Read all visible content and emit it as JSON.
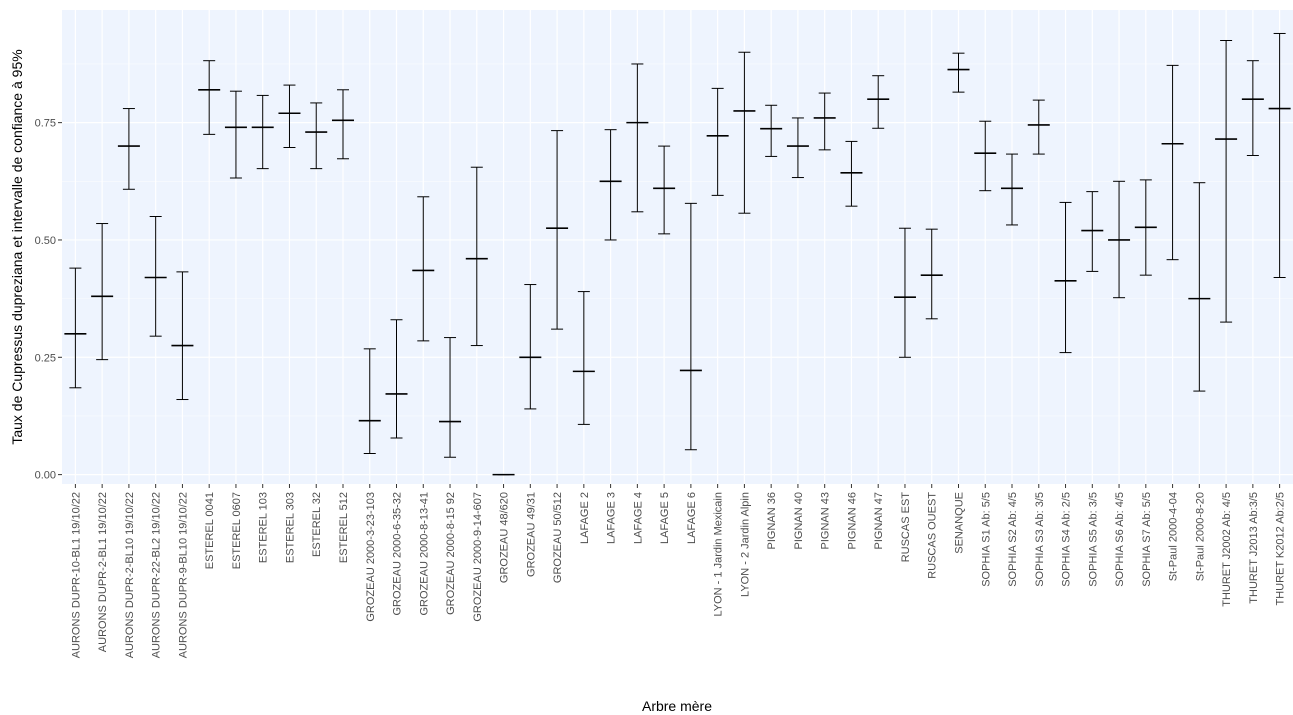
{
  "chart_data": {
    "type": "errorbar",
    "xlabel": "Arbre mère",
    "ylabel": "Taux de Cupressus dupreziana et intervalle de confiance à 95%",
    "ylim": [
      -0.02,
      0.99
    ],
    "yticks": [
      0.0,
      0.25,
      0.5,
      0.75
    ],
    "ytick_labels": [
      "0.00",
      "0.25",
      "0.50",
      "0.75"
    ],
    "grid": true,
    "colors": {
      "panel": "#eef4fe",
      "grid_major": "#ffffff",
      "mark": "#000000"
    },
    "categories": [
      "AURONS DUPR-10-BL1 19/10/22",
      "AURONS DUPR-2-BL1 19/10/22",
      "AURONS DUPR-2-BL10 19/10/22",
      "AURONS DUPR-22-BL2 19/10/22",
      "AURONS DUPR-9-BL10 19/10/22",
      "ESTEREL 0041",
      "ESTEREL 0607",
      "ESTEREL 103",
      "ESTEREL 303",
      "ESTEREL 32",
      "ESTEREL 512",
      "GROZEAU 2000-3-23-103",
      "GROZEAU 2000-6-35-32",
      "GROZEAU 2000-8-13-41",
      "GROZEAU 2000-8-15 92",
      "GROZEAU 2000-9-14-607",
      "GROZEAU 48/620",
      "GROZEAU 49/31",
      "GROZEAU 50/512",
      "LAFAGE 2",
      "LAFAGE 3",
      "LAFAGE 4",
      "LAFAGE 5",
      "LAFAGE 6",
      "LYON - 1 Jardin Mexicain",
      "LYON - 2 Jardin Alpin",
      "PIGNAN 36",
      "PIGNAN 40",
      "PIGNAN 43",
      "PIGNAN 46",
      "PIGNAN 47",
      "RUSCAS EST",
      "RUSCAS OUEST",
      "SENANQUE",
      "SOPHIA S1 Ab: 5/5",
      "SOPHIA S2 Ab: 4/5",
      "SOPHIA S3 Ab: 3/5",
      "SOPHIA S4 Ab: 2/5",
      "SOPHIA S5 Ab: 3/5",
      "SOPHIA S6 Ab: 4/5",
      "SOPHIA S7 Ab: 5/5",
      "St-Paul 2000-4-04",
      "St-Paul 2000-8-20",
      "THURET J2002 Ab: 4/5",
      "THURET J2013 Ab:3/5",
      "THURET K2012 Ab:2/5"
    ],
    "values": [
      0.3,
      0.38,
      0.7,
      0.42,
      0.275,
      0.82,
      0.74,
      0.74,
      0.77,
      0.73,
      0.755,
      0.115,
      0.172,
      0.435,
      0.113,
      0.46,
      0.0,
      0.25,
      0.525,
      0.22,
      0.625,
      0.75,
      0.61,
      0.222,
      0.722,
      0.775,
      0.737,
      0.7,
      0.76,
      0.643,
      0.8,
      0.378,
      0.425,
      0.863,
      0.685,
      0.61,
      0.745,
      0.413,
      0.52,
      0.5,
      0.527,
      0.705,
      0.375,
      0.715,
      0.8,
      0.78
    ],
    "lower": [
      0.185,
      0.245,
      0.608,
      0.295,
      0.16,
      0.725,
      0.632,
      0.652,
      0.697,
      0.652,
      0.673,
      0.045,
      0.078,
      0.285,
      0.037,
      0.275,
      0.0,
      0.14,
      0.31,
      0.107,
      0.5,
      0.56,
      0.513,
      0.053,
      0.595,
      0.557,
      0.678,
      0.633,
      0.692,
      0.572,
      0.738,
      0.25,
      0.332,
      0.815,
      0.605,
      0.532,
      0.683,
      0.26,
      0.433,
      0.377,
      0.425,
      0.458,
      0.178,
      0.325,
      0.68,
      0.42
    ],
    "upper": [
      0.44,
      0.535,
      0.78,
      0.55,
      0.432,
      0.882,
      0.817,
      0.808,
      0.83,
      0.792,
      0.82,
      0.268,
      0.33,
      0.592,
      0.292,
      0.655,
      0.0,
      0.405,
      0.733,
      0.39,
      0.735,
      0.875,
      0.7,
      0.578,
      0.823,
      0.9,
      0.787,
      0.76,
      0.813,
      0.71,
      0.85,
      0.525,
      0.523,
      0.898,
      0.753,
      0.683,
      0.798,
      0.58,
      0.603,
      0.625,
      0.628,
      0.872,
      0.622,
      0.925,
      0.882,
      0.94
    ]
  }
}
